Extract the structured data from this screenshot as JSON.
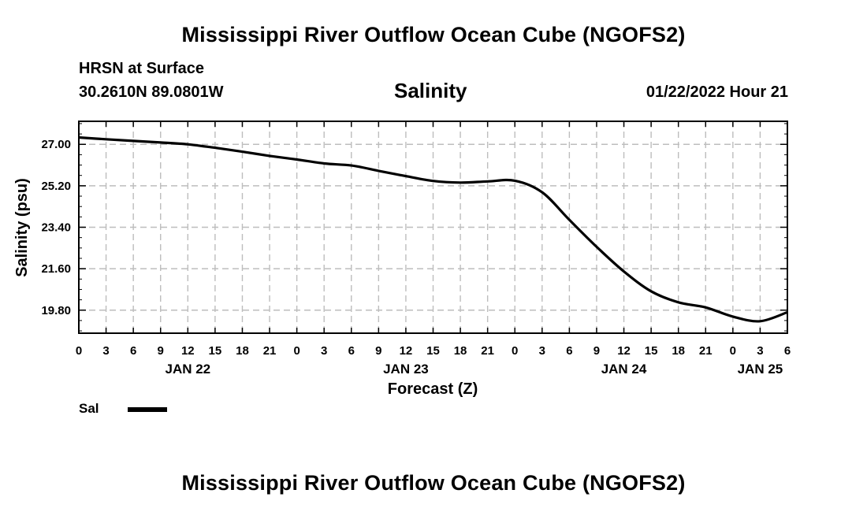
{
  "header": {
    "title": "Mississippi River Outflow Ocean Cube (NGOFS2)",
    "station": "HRSN at Surface",
    "coords": "30.2610N  89.0801W",
    "variable": "Salinity",
    "timestamp": "01/22/2022 Hour 21"
  },
  "footer": {
    "title": "Mississippi River Outflow Ocean Cube (NGOFS2)"
  },
  "legend": [
    {
      "label": "Sal",
      "color": "#000000"
    }
  ],
  "chart_data": {
    "type": "line",
    "xlabel": "Forecast (Z)",
    "ylabel": "Salinity (psu)",
    "xlim": [
      0,
      78
    ],
    "ylim": [
      18.8,
      28.0
    ],
    "x_unit": "hours from 00Z Jan 22",
    "x_tick_labels": [
      "0",
      "3",
      "6",
      "9",
      "12",
      "15",
      "18",
      "21",
      "0",
      "3",
      "6",
      "9",
      "12",
      "15",
      "18",
      "21",
      "0",
      "3",
      "6",
      "9",
      "12",
      "15",
      "18",
      "21",
      "0",
      "3",
      "6"
    ],
    "date_labels": [
      {
        "label": "JAN 22",
        "at": 12
      },
      {
        "label": "JAN 23",
        "at": 36
      },
      {
        "label": "JAN 24",
        "at": 60
      },
      {
        "label": "JAN 25",
        "at": 75
      }
    ],
    "y_ticks": [
      19.8,
      21.6,
      23.4,
      25.2,
      27.0
    ],
    "y_tick_labels": [
      "19.80",
      "21.60",
      "23.40",
      "25.20",
      "27.00"
    ],
    "grid": true,
    "series": [
      {
        "name": "Sal",
        "x": [
          0,
          3,
          6,
          9,
          12,
          15,
          18,
          21,
          24,
          27,
          30,
          33,
          36,
          39,
          42,
          45,
          48,
          51,
          54,
          57,
          60,
          63,
          66,
          69,
          72,
          75,
          78
        ],
        "y": [
          27.3,
          27.22,
          27.15,
          27.08,
          27.0,
          26.85,
          26.68,
          26.5,
          26.34,
          26.17,
          26.08,
          25.85,
          25.62,
          25.41,
          25.34,
          25.39,
          25.42,
          24.92,
          23.72,
          22.55,
          21.48,
          20.62,
          20.14,
          19.92,
          19.52,
          19.32,
          19.71
        ]
      }
    ]
  }
}
